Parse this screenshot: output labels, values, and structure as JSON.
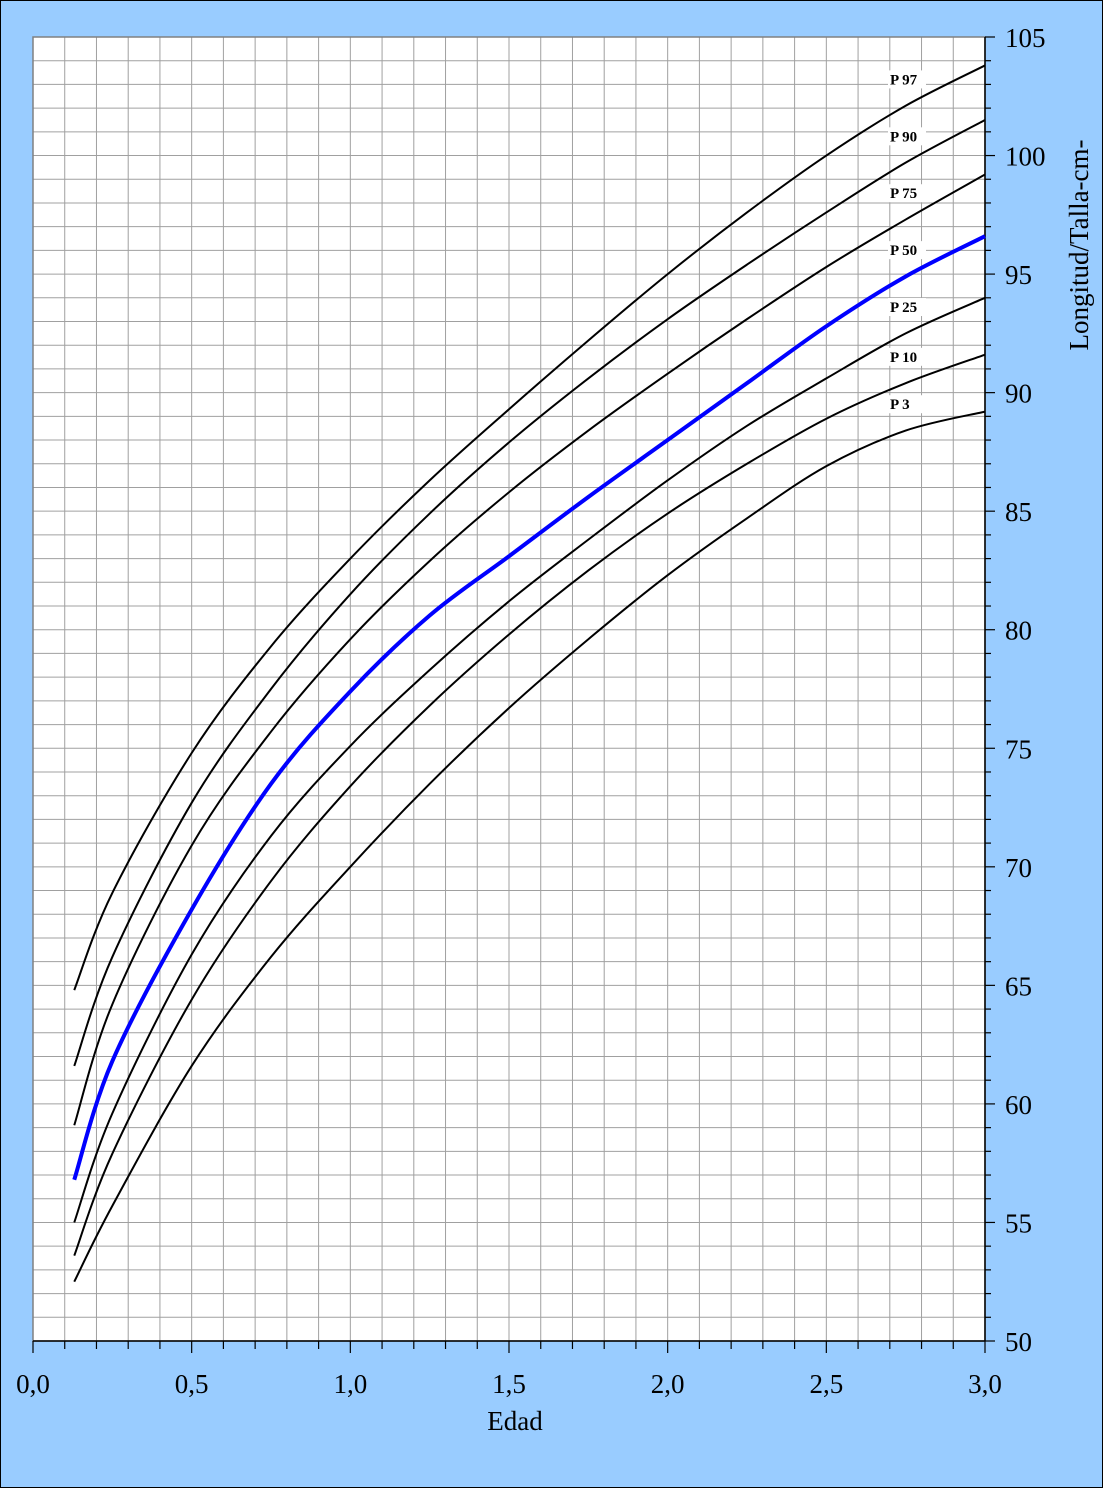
{
  "chart_data": {
    "type": "line",
    "title": "",
    "xlabel": "Edad",
    "ylabel": "Longitud/Talla-cm-",
    "xlim": [
      0,
      3
    ],
    "ylim": [
      50,
      105
    ],
    "x_ticks": [
      "0,0",
      "0,5",
      "1,0",
      "1,5",
      "2,0",
      "2,5",
      "3,0"
    ],
    "y_ticks": [
      "50",
      "55",
      "60",
      "65",
      "70",
      "75",
      "80",
      "85",
      "90",
      "95",
      "100",
      "105"
    ],
    "y_axis_position": "right",
    "grid": true,
    "highlight_color": "#0000ff",
    "line_color": "#000000",
    "plot_background": "#ffffff",
    "page_background": "#99ccff",
    "series": [
      {
        "name": "P 97",
        "x": [
          0.13,
          0.25,
          0.5,
          0.75,
          1.0,
          1.25,
          1.5,
          1.75,
          2.0,
          2.25,
          2.5,
          2.75,
          3.0
        ],
        "y": [
          64.8,
          68.9,
          74.8,
          79.3,
          83.0,
          86.3,
          89.3,
          92.2,
          95.0,
          97.6,
          100.0,
          102.1,
          103.8
        ]
      },
      {
        "name": "P 90",
        "x": [
          0.13,
          0.25,
          0.5,
          0.75,
          1.0,
          1.25,
          1.5,
          1.75,
          2.0,
          2.25,
          2.5,
          2.75,
          3.0
        ],
        "y": [
          61.6,
          66.2,
          72.7,
          77.5,
          81.5,
          84.9,
          87.9,
          90.6,
          93.1,
          95.4,
          97.6,
          99.7,
          101.5
        ]
      },
      {
        "name": "P 75",
        "x": [
          0.13,
          0.25,
          0.5,
          0.75,
          1.0,
          1.25,
          1.5,
          1.75,
          2.0,
          2.25,
          2.5,
          2.75,
          3.0
        ],
        "y": [
          59.1,
          64.2,
          70.9,
          75.7,
          79.6,
          82.9,
          85.8,
          88.4,
          90.8,
          93.1,
          95.3,
          97.3,
          99.2
        ]
      },
      {
        "name": "P 50",
        "x": [
          0.13,
          0.25,
          0.5,
          0.75,
          1.0,
          1.25,
          1.5,
          1.75,
          2.0,
          2.25,
          2.5,
          2.75,
          3.0
        ],
        "y": [
          56.8,
          61.8,
          68.2,
          73.5,
          77.4,
          80.6,
          83.1,
          85.6,
          88.0,
          90.4,
          92.8,
          94.9,
          96.6
        ]
      },
      {
        "name": "P 25",
        "x": [
          0.13,
          0.25,
          0.5,
          0.75,
          1.0,
          1.25,
          1.5,
          1.75,
          2.0,
          2.25,
          2.5,
          2.75,
          3.0
        ],
        "y": [
          55.0,
          59.6,
          66.3,
          71.3,
          75.1,
          78.3,
          81.2,
          83.8,
          86.3,
          88.6,
          90.6,
          92.5,
          94.0
        ]
      },
      {
        "name": "P 10",
        "x": [
          0.13,
          0.25,
          0.5,
          0.75,
          1.0,
          1.25,
          1.5,
          1.75,
          2.0,
          2.25,
          2.5,
          2.75,
          3.0
        ],
        "y": [
          53.6,
          57.9,
          64.4,
          69.4,
          73.4,
          76.8,
          79.8,
          82.5,
          84.9,
          87.0,
          88.9,
          90.4,
          91.6
        ]
      },
      {
        "name": "P 3",
        "x": [
          0.13,
          0.25,
          0.5,
          0.75,
          1.0,
          1.25,
          1.5,
          1.75,
          2.0,
          2.25,
          2.5,
          2.75,
          3.0
        ],
        "y": [
          52.5,
          55.7,
          61.6,
          66.2,
          70.0,
          73.5,
          76.7,
          79.6,
          82.3,
          84.7,
          86.9,
          88.4,
          89.2
        ]
      }
    ],
    "highlight_series": "P 50"
  }
}
